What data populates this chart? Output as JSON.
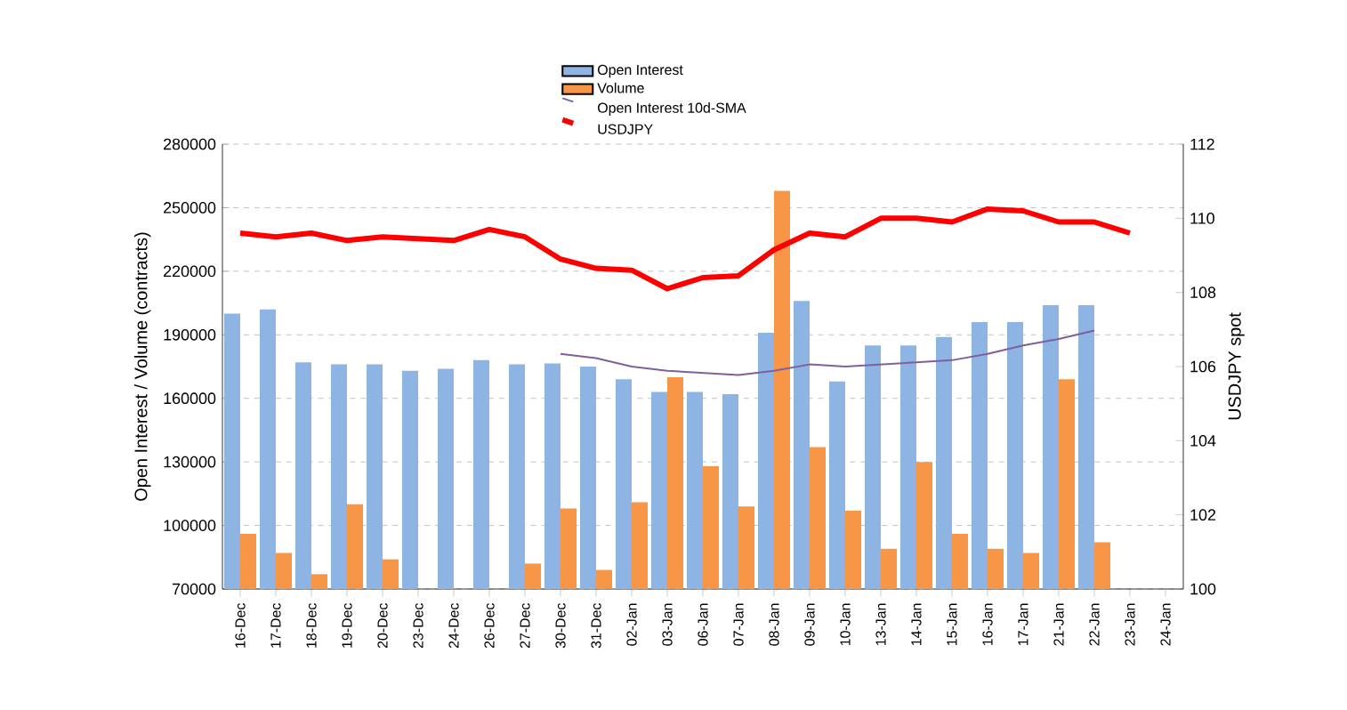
{
  "chart_data": {
    "type": "bar",
    "categories": [
      "16-Dec",
      "17-Dec",
      "18-Dec",
      "19-Dec",
      "20-Dec",
      "23-Dec",
      "24-Dec",
      "26-Dec",
      "27-Dec",
      "30-Dec",
      "31-Dec",
      "02-Jan",
      "03-Jan",
      "06-Jan",
      "07-Jan",
      "08-Jan",
      "09-Jan",
      "10-Jan",
      "13-Jan",
      "14-Jan",
      "15-Jan",
      "16-Jan",
      "17-Jan",
      "21-Jan",
      "22-Jan",
      "23-Jan",
      "24-Jan"
    ],
    "series": [
      {
        "name": "Open Interest",
        "color": "#8db4e2",
        "values": [
          200000,
          202000,
          177000,
          176000,
          176000,
          173000,
          174000,
          178000,
          176000,
          176500,
          175000,
          169000,
          163000,
          163000,
          162000,
          191000,
          206000,
          168000,
          185000,
          185000,
          189000,
          196000,
          196000,
          204000,
          204000,
          null,
          null
        ]
      },
      {
        "name": "Volume",
        "color": "#f79646",
        "values": [
          96000,
          87000,
          77000,
          110000,
          84000,
          null,
          null,
          null,
          82000,
          108000,
          79000,
          111000,
          170000,
          128000,
          109000,
          258000,
          137000,
          107000,
          89000,
          130000,
          96000,
          89000,
          87000,
          169000,
          92000,
          null,
          null
        ]
      },
      {
        "name": "Open Interest 10d-SMA",
        "type": "line",
        "color": "#7f5fa0",
        "values": [
          null,
          null,
          null,
          null,
          null,
          null,
          null,
          null,
          null,
          181000,
          179000,
          175000,
          173000,
          172000,
          171000,
          173000,
          176000,
          175000,
          176000,
          177000,
          178000,
          181000,
          185000,
          188000,
          192000,
          null,
          null
        ]
      },
      {
        "name": "USDJPY",
        "type": "line",
        "axis": "y2",
        "color": "#ff0000",
        "values": [
          109.6,
          109.5,
          109.6,
          109.4,
          109.5,
          109.45,
          109.4,
          109.7,
          109.5,
          108.9,
          108.65,
          108.6,
          108.1,
          108.4,
          108.45,
          109.15,
          109.6,
          109.5,
          110.0,
          110.0,
          109.9,
          110.25,
          110.2,
          109.9,
          109.9,
          109.6,
          null
        ]
      }
    ],
    "ylabel": "Open Interest / Volume (contracts)",
    "y2label": "USDJPY spot",
    "ylim": [
      70000,
      280000
    ],
    "yticks": [
      70000,
      100000,
      130000,
      160000,
      190000,
      220000,
      250000,
      280000
    ],
    "y2lim": [
      100,
      112
    ],
    "y2ticks": [
      100,
      102,
      104,
      106,
      108,
      110,
      112
    ],
    "grid": "y",
    "legend": "top"
  }
}
